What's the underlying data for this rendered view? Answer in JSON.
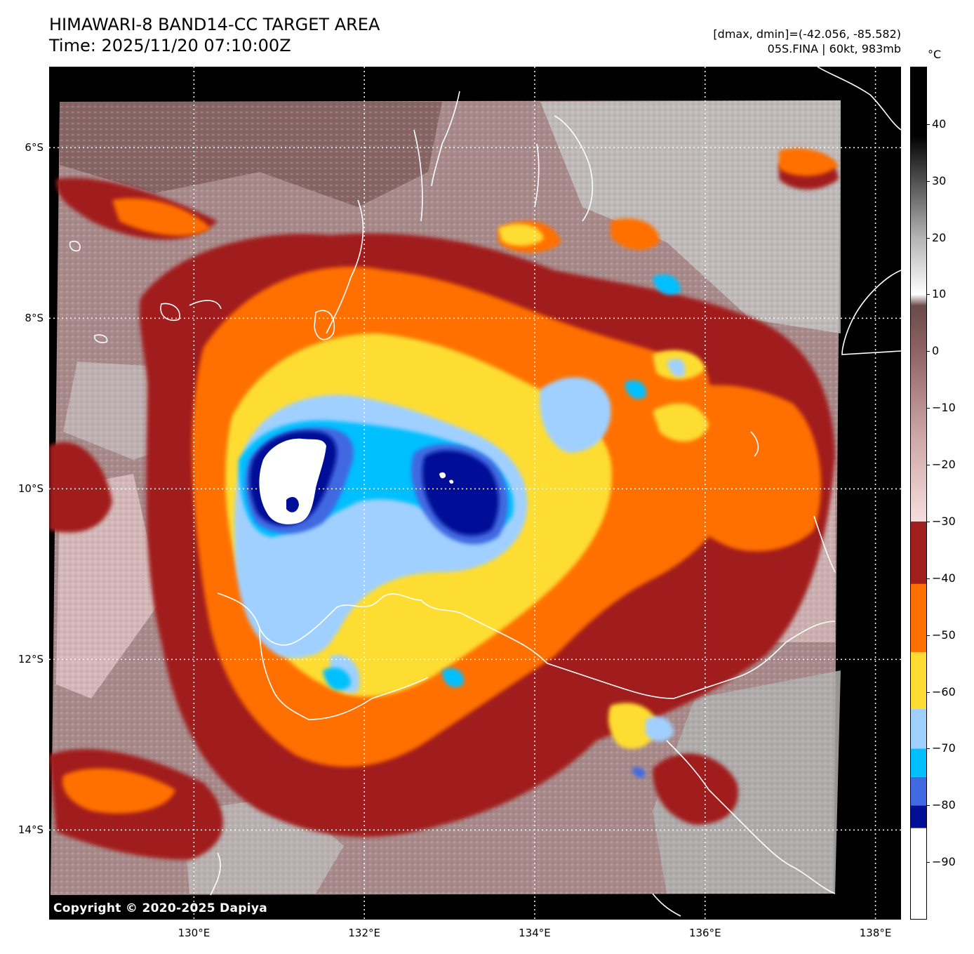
{
  "header": {
    "title_line1": "HIMAWARI-8 BAND14-CC TARGET AREA",
    "title_line2": "Time: 2025/11/20 07:10:00Z",
    "range_text": "[dmax, dmin]=(-42.056, -85.582)",
    "storm_text": "05S.FINA | 60kt, 983mb"
  },
  "map": {
    "copyright": "Copyright © 2020-2025 Dapiya",
    "lat_labels": [
      "6°S",
      "8°S",
      "10°S",
      "12°S",
      "14°S"
    ],
    "lon_labels": [
      "130°E",
      "132°E",
      "134°E",
      "136°E",
      "138°E"
    ],
    "lat_values": [
      -6,
      -8,
      -10,
      -12,
      -14
    ],
    "lon_values": [
      130,
      132,
      134,
      136,
      138
    ],
    "lon_range": [
      128.3,
      138.3
    ],
    "lat_range": [
      -5.05,
      -15.05
    ],
    "storm_center": {
      "lon": 131.3,
      "lat": -9.8
    },
    "eye_feature": {
      "lon": 131.2,
      "lat": -9.9
    },
    "cold_core_east": {
      "lon": 133.2,
      "lat": -9.9
    },
    "small_cell_se": {
      "lon": 135.4,
      "lat": -12.8
    }
  },
  "colorbar": {
    "unit": "°C",
    "range": [
      -100,
      50
    ],
    "tick_labels": [
      "40",
      "30",
      "20",
      "10",
      "0",
      "−10",
      "−20",
      "−30",
      "−40",
      "−50",
      "−60",
      "−70",
      "−80",
      "−90"
    ],
    "tick_values": [
      40,
      30,
      20,
      10,
      0,
      -10,
      -20,
      -30,
      -40,
      -50,
      -60,
      -70,
      -80,
      -90
    ],
    "bands": [
      {
        "from": -100,
        "to": -84,
        "color": "#ffffff"
      },
      {
        "from": -84,
        "to": -80,
        "color": "#000f96"
      },
      {
        "from": -80,
        "to": -75,
        "color": "#4169e1"
      },
      {
        "from": -75,
        "to": -70,
        "color": "#00bfff"
      },
      {
        "from": -70,
        "to": -63,
        "color": "#a0d0ff"
      },
      {
        "from": -63,
        "to": -53,
        "color": "#fedd33"
      },
      {
        "from": -53,
        "to": -41,
        "color": "#ff6f00"
      },
      {
        "from": -41,
        "to": -30,
        "color": "#a11e1e"
      }
    ],
    "gradient_stops": [
      {
        "value": -30,
        "color": "#f6dede"
      },
      {
        "value": -15,
        "color": "#cfa7a7"
      },
      {
        "value": 0,
        "color": "#8e6363"
      },
      {
        "value": 8,
        "color": "#6b4a4a"
      },
      {
        "value": 10,
        "color": "#ffffff"
      },
      {
        "value": 20,
        "color": "#b4b4b4"
      },
      {
        "value": 30,
        "color": "#505050"
      },
      {
        "value": 38,
        "color": "#000000"
      },
      {
        "value": 50,
        "color": "#000000"
      }
    ]
  }
}
